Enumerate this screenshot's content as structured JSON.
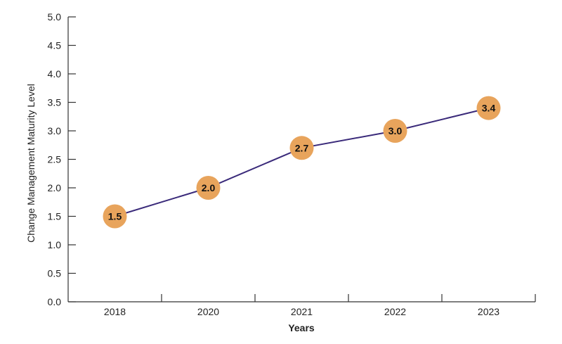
{
  "chart_data": {
    "type": "line",
    "title": "",
    "xlabel": "Years",
    "ylabel": "Change Management Maturity Level",
    "categories": [
      "2018",
      "2020",
      "2021",
      "2022",
      "2023"
    ],
    "series": [
      {
        "values": [
          1.5,
          2.0,
          2.7,
          3.0,
          3.4
        ]
      }
    ],
    "data_labels": [
      "1.5",
      "2.0",
      "2.7",
      "3.0",
      "3.4"
    ],
    "y_ticks": [
      "0.0",
      "0.5",
      "1.0",
      "1.5",
      "2.0",
      "2.5",
      "3.0",
      "3.5",
      "4.0",
      "4.5",
      "5.0"
    ],
    "ylim": [
      0,
      5
    ],
    "grid": false,
    "legend": "none",
    "colors": {
      "line": "#3a2a7a",
      "marker": "#e8a45c"
    }
  }
}
